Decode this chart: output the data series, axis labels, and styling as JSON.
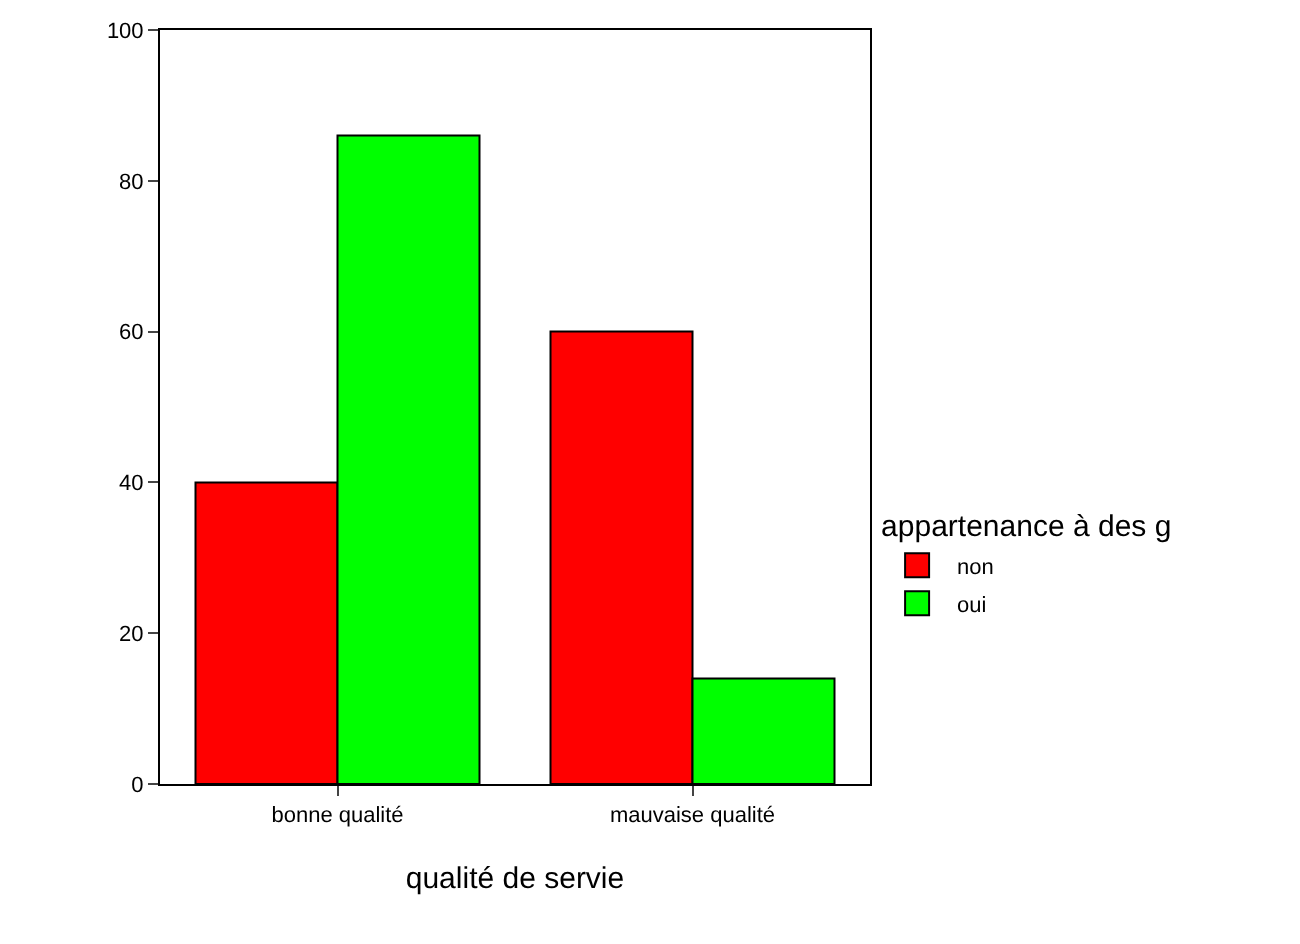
{
  "chart_data": {
    "type": "bar",
    "xlabel": "qualité de servie",
    "legend_title": "appartenance à des g",
    "categories": [
      "bonne qualité",
      "mauvaise qualité"
    ],
    "series": [
      {
        "name": "non",
        "color": "#ff0000",
        "values": [
          40,
          60
        ]
      },
      {
        "name": "oui",
        "color": "#00ff00",
        "values": [
          86,
          14
        ]
      }
    ],
    "ylim": [
      0,
      100
    ],
    "yticks": [
      0,
      20,
      40,
      60,
      80,
      100
    ],
    "grid": false,
    "legend": "right"
  }
}
